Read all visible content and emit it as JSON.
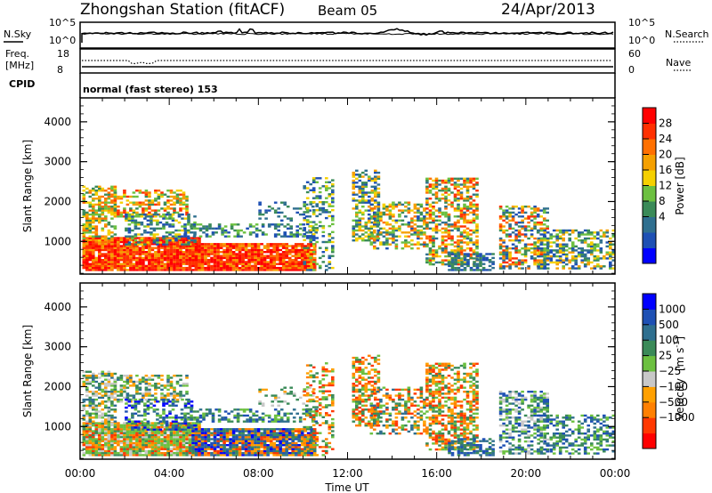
{
  "header": {
    "station": "Zhongshan Station (fitACF)",
    "beam": "Beam 05",
    "date": "24/Apr/2013"
  },
  "noise_panel": {
    "left_label": "N.Sky",
    "left_ticks": [
      "10^5",
      "10^0"
    ],
    "right_ticks": [
      "10^5",
      "10^0"
    ],
    "right_label": "N.Search"
  },
  "freq_panel": {
    "left_label_1": "Freq.",
    "left_label_2": "[MHz]",
    "left_ticks": [
      "18",
      "8"
    ],
    "right_ticks": [
      "60",
      "0"
    ],
    "right_label": "Nave"
  },
  "cpid_panel": {
    "label": "CPID",
    "mode_text": "normal (fast stereo) 153"
  },
  "chart_data": [
    {
      "type": "heatmap",
      "title": "",
      "xlabel": "Time UT",
      "ylabel": "Slant Range [km]",
      "xlim": [
        "00:00",
        "24:00"
      ],
      "ylim": [
        180,
        4600
      ],
      "x_ticks": [
        "00:00",
        "04:00",
        "08:00",
        "12:00",
        "16:00",
        "20:00",
        "00:00"
      ],
      "y_ticks": [
        1000,
        2000,
        3000,
        4000
      ],
      "colorbar": {
        "label": "Power [dB]",
        "tick_labels": [
          "28",
          "24",
          "20",
          "16",
          "12",
          "8",
          "4"
        ],
        "colors": [
          "#0000ff",
          "#1e50b4",
          "#2f6f8f",
          "#3a8a58",
          "#6cc040",
          "#f5d000",
          "#f5a000",
          "#ff7000",
          "#ff3000",
          "#ff0000"
        ]
      }
    },
    {
      "type": "heatmap",
      "title": "",
      "xlabel": "Time UT",
      "ylabel": "Slant Range [km]",
      "xlim": [
        "00:00",
        "24:00"
      ],
      "ylim": [
        180,
        4600
      ],
      "x_ticks": [
        "00:00",
        "04:00",
        "08:00",
        "12:00",
        "16:00",
        "20:00",
        "00:00"
      ],
      "y_ticks": [
        1000,
        2000,
        3000,
        4000
      ],
      "colorbar": {
        "label_main": "Velocity",
        "label_unit": "[m s",
        "label_sup": "-1",
        "label_end": "]",
        "tick_labels": [
          "1000",
          "500",
          "100",
          "25",
          "−25",
          "−100",
          "−500",
          "−1000"
        ],
        "colors": [
          "#ff0000",
          "#ff3800",
          "#ff8000",
          "#ffa000",
          "#c8c8c8",
          "#6cc040",
          "#3a8a58",
          "#2f6f8f",
          "#1e50b4",
          "#0000ff"
        ]
      }
    }
  ]
}
